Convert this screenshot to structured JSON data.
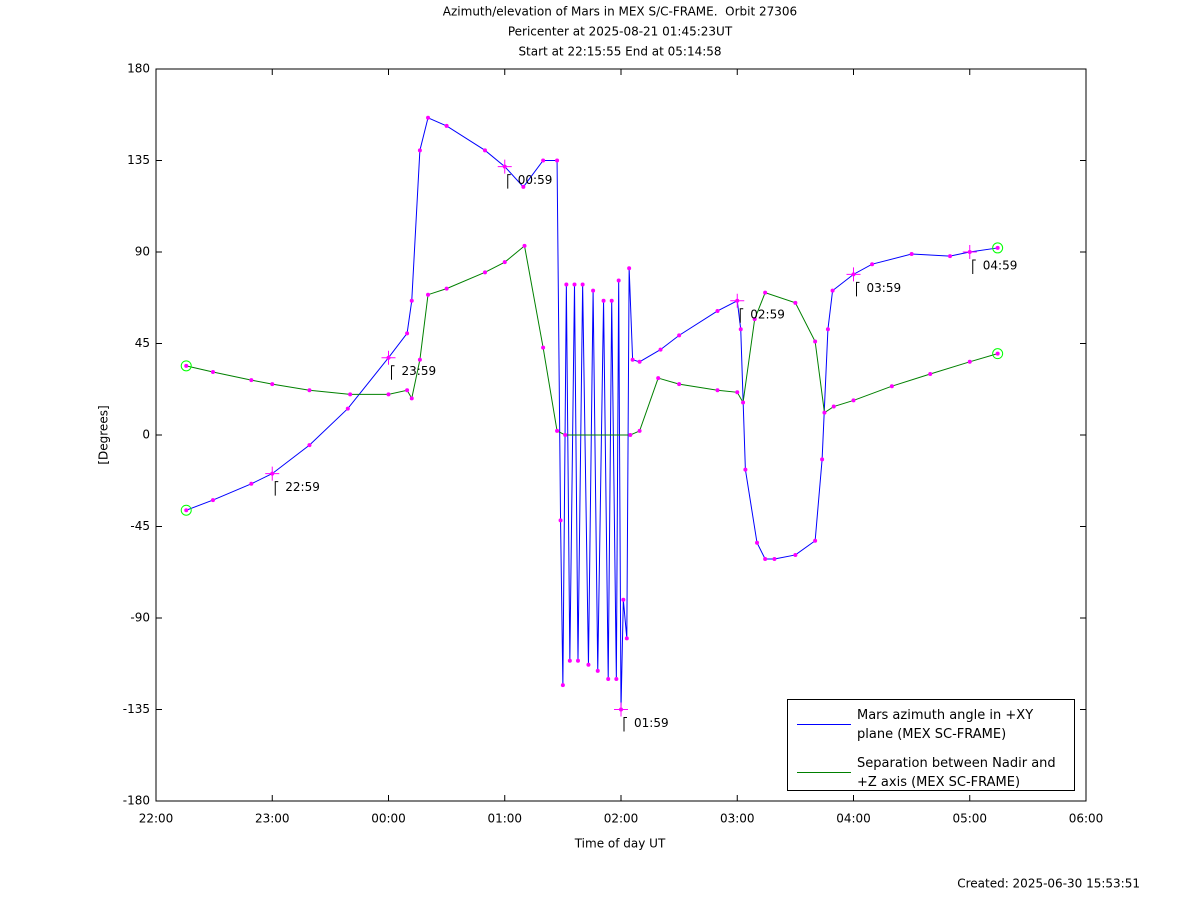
{
  "chart_data": {
    "type": "line",
    "title": [
      "Azimuth/elevation of Mars in MEX S/C-FRAME.  Orbit 27306",
      "Pericenter at 2025-08-21 01:45:23UT",
      "Start at 22:15:55 End at 05:14:58"
    ],
    "xlabel": "Time of day UT",
    "ylabel": "[Degrees]",
    "footer": "Created: 2025-06-30 15:53:51",
    "xlim": [
      22,
      30
    ],
    "xticks": [
      {
        "value": 22,
        "label": "22:00"
      },
      {
        "value": 23,
        "label": "23:00"
      },
      {
        "value": 24,
        "label": "00:00"
      },
      {
        "value": 25,
        "label": "01:00"
      },
      {
        "value": 26,
        "label": "02:00"
      },
      {
        "value": 27,
        "label": "03:00"
      },
      {
        "value": 28,
        "label": "04:00"
      },
      {
        "value": 29,
        "label": "05:00"
      },
      {
        "value": 30,
        "label": "06:00"
      }
    ],
    "ylim": [
      -180,
      180
    ],
    "yticks": [
      -180,
      -135,
      -90,
      -45,
      0,
      45,
      90,
      135,
      180
    ],
    "grid": false,
    "legend": "lower right",
    "series": [
      {
        "name": "Mars azimuth angle in +XY plane (MEX SC-FRAME)",
        "color": "#0000ff",
        "x": [
          22.26,
          22.49,
          22.82,
          23.0,
          23.32,
          23.65,
          24.0,
          24.16,
          24.2,
          24.27,
          24.34,
          24.5,
          24.83,
          25.0,
          25.16,
          25.33,
          25.45,
          25.48,
          25.5,
          25.53,
          25.56,
          25.6,
          25.63,
          25.67,
          25.72,
          25.76,
          25.8,
          25.85,
          25.89,
          25.92,
          25.96,
          25.98,
          26.0,
          26.02,
          26.05,
          26.07,
          26.1,
          26.16,
          26.34,
          26.5,
          26.83,
          27.0,
          27.03,
          27.07,
          27.17,
          27.24,
          27.32,
          27.5,
          27.67,
          27.73,
          27.78,
          27.82,
          28.0,
          28.16,
          28.5,
          28.83,
          29.0,
          29.24
        ],
        "values": [
          -37,
          -32,
          -24,
          -19,
          -5,
          13,
          38,
          50,
          66,
          140,
          156,
          152,
          140,
          132,
          122,
          135,
          135,
          -42,
          -123,
          74,
          -111,
          74,
          -111,
          74,
          -113,
          71,
          -116,
          66,
          -120,
          66,
          -120,
          76,
          -135,
          -81,
          -100,
          82,
          37,
          36,
          42,
          49,
          61,
          66,
          52,
          -17,
          -53,
          -61,
          -61,
          -59,
          -52,
          -12,
          52,
          71,
          79,
          84,
          89,
          88,
          90,
          92
        ]
      },
      {
        "name": "Separation between Nadir and +Z axis (MEX SC-FRAME)",
        "color": "#008000",
        "x": [
          22.26,
          22.49,
          22.82,
          23.0,
          23.32,
          23.67,
          24.0,
          24.16,
          24.2,
          24.27,
          24.34,
          24.5,
          24.83,
          25.0,
          25.17,
          25.33,
          25.45,
          25.52,
          26.08,
          26.16,
          26.32,
          26.5,
          26.83,
          27.0,
          27.05,
          27.15,
          27.24,
          27.5,
          27.67,
          27.75,
          27.83,
          28.0,
          28.33,
          28.66,
          29.0,
          29.24
        ],
        "values": [
          34,
          31,
          27,
          25,
          22,
          20,
          20,
          22,
          18,
          37,
          69,
          72,
          80,
          85,
          93,
          43,
          2,
          0,
          0,
          2,
          28,
          25,
          22,
          21,
          16,
          57,
          70,
          65,
          46,
          11,
          14,
          17,
          24,
          30,
          36,
          40
        ]
      }
    ],
    "annotations": [
      {
        "text": "22:59",
        "x": 23.0,
        "y": -19
      },
      {
        "text": "23:59",
        "x": 24.0,
        "y": 38
      },
      {
        "text": "00:59",
        "x": 25.0,
        "y": 132
      },
      {
        "text": "01:59",
        "x": 26.0,
        "y": -135
      },
      {
        "text": "02:59",
        "x": 27.0,
        "y": 66
      },
      {
        "text": "03:59",
        "x": 28.0,
        "y": 79
      },
      {
        "text": "04:59",
        "x": 29.0,
        "y": 90
      }
    ]
  }
}
